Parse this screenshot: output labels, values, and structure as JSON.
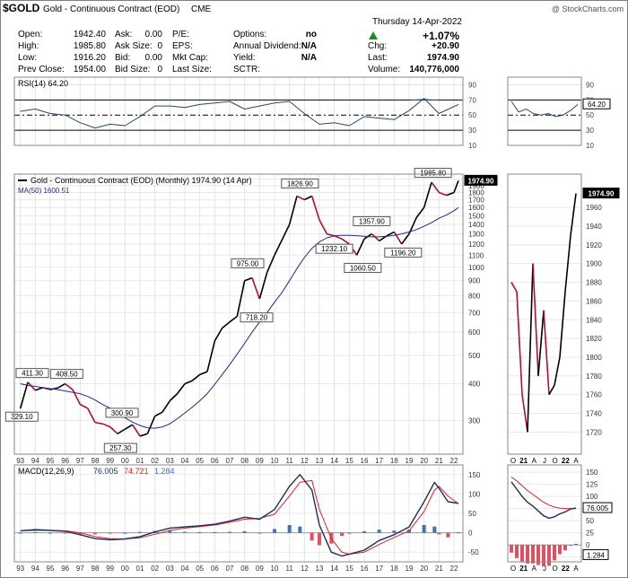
{
  "header": {
    "symbol": "$GOLD",
    "name": "Gold - Continuous Contract (EOD)",
    "exchange": "CME",
    "watermark": "@ StockCharts.com",
    "date": "Thursday   14-Apr-2022",
    "stats_left": [
      {
        "label": "Open:",
        "value": "1942.40"
      },
      {
        "label": "High:",
        "value": "1985.80"
      },
      {
        "label": "Low:",
        "value": "1916.20"
      },
      {
        "label": "Prev Close:",
        "value": "1954.00"
      }
    ],
    "stats_mid": [
      {
        "label": "Ask:",
        "value": "0.00"
      },
      {
        "label": "Ask Size:",
        "value": "0"
      },
      {
        "label": "Bid:",
        "value": "0.00"
      },
      {
        "label": "Bid Size:",
        "value": "0"
      }
    ],
    "stats_mid2": [
      {
        "label": "P/E:",
        "value": ""
      },
      {
        "label": "EPS:",
        "value": ""
      },
      {
        "label": "Mkt Cap:",
        "value": ""
      },
      {
        "label": "Last Size:",
        "value": ""
      }
    ],
    "stats_right": [
      {
        "label": "Options:",
        "value": "no"
      },
      {
        "label": "Annual Dividend:",
        "value": "N/A"
      },
      {
        "label": "Yield:",
        "value": "N/A"
      },
      {
        "label": "SCTR:",
        "value": ""
      }
    ],
    "pct_change": "+1.07%",
    "stats_far": [
      {
        "label": "Chg:",
        "value": "+20.90"
      },
      {
        "label": "Last:",
        "value": "1974.90"
      },
      {
        "label": "Volume:",
        "value": "140,776,000"
      }
    ]
  },
  "colors": {
    "up": "#000000",
    "down": "#b0102a",
    "ma": "#1f2a80",
    "rsi": "#27476f",
    "macd": "#1c2f5a",
    "signal": "#e0202a",
    "hist_pos": "#3f6fc0",
    "hist_neg": "#e05060",
    "fill": "#6b8fd0",
    "last_box": "#000000",
    "triangle": "#1a8c2a"
  },
  "chart_data": [
    {
      "type": "line",
      "panel": "RSI",
      "legend": "RSI(14) 64.20",
      "y_ticks": [
        90,
        70,
        50,
        30,
        10
      ],
      "last_label": "64.20",
      "ylim": [
        10,
        100
      ],
      "x": [
        1993,
        1994,
        1995,
        1996,
        1997,
        1998,
        1999,
        2000,
        2001,
        2002,
        2003,
        2004,
        2005,
        2006,
        2007,
        2008,
        2009,
        2010,
        2011,
        2012,
        2013,
        2014,
        2015,
        2016,
        2017,
        2018,
        2019,
        2020,
        2021,
        2022.3
      ],
      "values": [
        55,
        58,
        52,
        50,
        40,
        33,
        38,
        36,
        48,
        62,
        62,
        60,
        64,
        66,
        68,
        58,
        62,
        66,
        68,
        52,
        38,
        40,
        36,
        48,
        46,
        44,
        56,
        72,
        52,
        64
      ],
      "inset_values": [
        68,
        54,
        58,
        52,
        50,
        52,
        48,
        50,
        56,
        64
      ]
    },
    {
      "type": "line",
      "panel": "Price",
      "legend": "Gold - Continuous Contract (EOD) (Monthly) 1974.90 (14 Apr)",
      "ma_legend": "MA(50) 1600.51",
      "y_scale": "log",
      "y_ticks": [
        2000,
        1900,
        1800,
        1700,
        1600,
        1500,
        1400,
        1300,
        1200,
        1100,
        1000,
        900,
        800,
        700,
        600,
        500,
        400,
        300
      ],
      "x_ticks": [
        "93",
        "94",
        "95",
        "96",
        "97",
        "98",
        "99",
        "00",
        "01",
        "02",
        "03",
        "04",
        "05",
        "06",
        "07",
        "08",
        "09",
        "10",
        "11",
        "12",
        "13",
        "14",
        "15",
        "16",
        "17",
        "18",
        "19",
        "20",
        "21",
        "22"
      ],
      "x": [
        1993,
        1993.5,
        1994,
        1994.5,
        1995,
        1995.5,
        1996,
        1996.5,
        1997,
        1997.5,
        1998,
        1998.5,
        1999,
        1999.5,
        2000,
        2000.5,
        2001,
        2001.5,
        2002,
        2002.5,
        2003,
        2003.5,
        2004,
        2004.5,
        2005,
        2005.5,
        2006,
        2006.5,
        2007,
        2007.5,
        2008,
        2008.5,
        2009,
        2009.5,
        2010,
        2010.5,
        2011,
        2011.5,
        2012,
        2012.5,
        2013,
        2013.5,
        2014,
        2014.5,
        2015,
        2015.5,
        2016,
        2016.5,
        2017,
        2017.5,
        2018,
        2018.5,
        2019,
        2019.5,
        2020,
        2020.5,
        2021,
        2021.5,
        2022,
        2022.3
      ],
      "close": [
        329,
        405,
        380,
        388,
        382,
        387,
        400,
        382,
        340,
        330,
        295,
        292,
        285,
        270,
        280,
        290,
        265,
        270,
        310,
        320,
        350,
        370,
        400,
        410,
        430,
        440,
        560,
        620,
        650,
        680,
        900,
        920,
        780,
        960,
        1100,
        1240,
        1400,
        1750,
        1700,
        1750,
        1450,
        1300,
        1280,
        1250,
        1200,
        1100,
        1250,
        1300,
        1230,
        1280,
        1320,
        1200,
        1300,
        1480,
        1600,
        1950,
        1800,
        1760,
        1800,
        1974.9
      ],
      "ma": [
        400,
        395,
        392,
        388,
        385,
        382,
        378,
        374,
        370,
        362,
        352,
        340,
        330,
        318,
        306,
        296,
        288,
        283,
        282,
        285,
        292,
        304,
        318,
        333,
        350,
        370,
        398,
        430,
        465,
        505,
        550,
        600,
        650,
        700,
        760,
        820,
        900,
        990,
        1080,
        1160,
        1220,
        1260,
        1280,
        1285,
        1285,
        1282,
        1275,
        1270,
        1270,
        1275,
        1285,
        1300,
        1320,
        1345,
        1380,
        1420,
        1470,
        1510,
        1560,
        1600.51
      ],
      "annotations": [
        {
          "label": "329.10",
          "x": 1993.1,
          "y": 329.1
        },
        {
          "label": "411.30",
          "x": 1993.8,
          "y": 411.3
        },
        {
          "label": "408.50",
          "x": 1996.1,
          "y": 408.5
        },
        {
          "label": "300.90",
          "x": 1999.8,
          "y": 300.9
        },
        {
          "label": "257.30",
          "x": 1999.7,
          "y": 257.3
        },
        {
          "label": "975.00",
          "x": 2008.2,
          "y": 975.0
        },
        {
          "label": "718.20",
          "x": 2008.8,
          "y": 718.2
        },
        {
          "label": "1826.90",
          "x": 2011.7,
          "y": 1826.9
        },
        {
          "label": "1232.10",
          "x": 2014.0,
          "y": 1232.1
        },
        {
          "label": "1357.90",
          "x": 2016.5,
          "y": 1357.9
        },
        {
          "label": "1060.50",
          "x": 2015.9,
          "y": 1060.5
        },
        {
          "label": "1196.20",
          "x": 2018.6,
          "y": 1196.2
        },
        {
          "label": "1985.80",
          "x": 2020.6,
          "y": 1985.8
        }
      ],
      "last_label": "1974.90",
      "inset_y_ticks": [
        1960,
        1940,
        1920,
        1900,
        1880,
        1860,
        1840,
        1820,
        1800,
        1780,
        1760,
        1740,
        1720
      ],
      "inset_ylim": [
        1706,
        1986
      ],
      "inset_x_ticks": [
        "O",
        "21",
        "A",
        "J",
        "O",
        "22",
        "A"
      ],
      "inset_values": [
        1880,
        1870,
        1760,
        1720,
        1900,
        1780,
        1850,
        1760,
        1770,
        1800,
        1870,
        1930,
        1974.9
      ]
    },
    {
      "type": "line",
      "panel": "MACD",
      "legend_prefix": "MACD(12,26,9)",
      "legend_macd": "76.005",
      "legend_signal": "74.721",
      "legend_hist": "1.284",
      "y_ticks": [
        150,
        100,
        50,
        0,
        -50
      ],
      "x": [
        1993,
        1994,
        1995,
        1996,
        1997,
        1998,
        1999,
        2000,
        2001,
        2002,
        2003,
        2004,
        2005,
        2006,
        2007,
        2008,
        2009,
        2010,
        2011,
        2011.7,
        2012.5,
        2013,
        2013.8,
        2014.5,
        2015,
        2016,
        2017,
        2018,
        2019,
        2020,
        2020.7,
        2021,
        2021.6,
        2022.3
      ],
      "macd": [
        5,
        8,
        6,
        4,
        -5,
        -15,
        -18,
        -16,
        -10,
        2,
        12,
        15,
        18,
        22,
        30,
        40,
        35,
        60,
        120,
        150,
        110,
        20,
        -50,
        -60,
        -55,
        -45,
        -20,
        -5,
        15,
        80,
        130,
        115,
        80,
        76.005
      ],
      "signal": [
        5,
        6,
        6,
        5,
        0,
        -10,
        -15,
        -16,
        -13,
        -4,
        6,
        12,
        16,
        20,
        27,
        35,
        37,
        48,
        95,
        130,
        135,
        60,
        -15,
        -50,
        -55,
        -50,
        -30,
        -12,
        5,
        55,
        110,
        120,
        95,
        74.721
      ],
      "ylim": [
        -75,
        175
      ],
      "inset_y_ticks": [
        150,
        125,
        100,
        75,
        50,
        25,
        0,
        -25
      ],
      "inset_ylim": [
        -35,
        165
      ],
      "inset_last_macd": "76.005",
      "inset_last_hist": "1.284",
      "inset_macd": [
        130,
        115,
        100,
        88,
        80,
        70,
        60,
        55,
        58,
        64,
        68,
        74,
        76.005
      ],
      "inset_signal": [
        140,
        132,
        122,
        112,
        104,
        96,
        88,
        82,
        78,
        76,
        75,
        75,
        74.721
      ]
    }
  ]
}
